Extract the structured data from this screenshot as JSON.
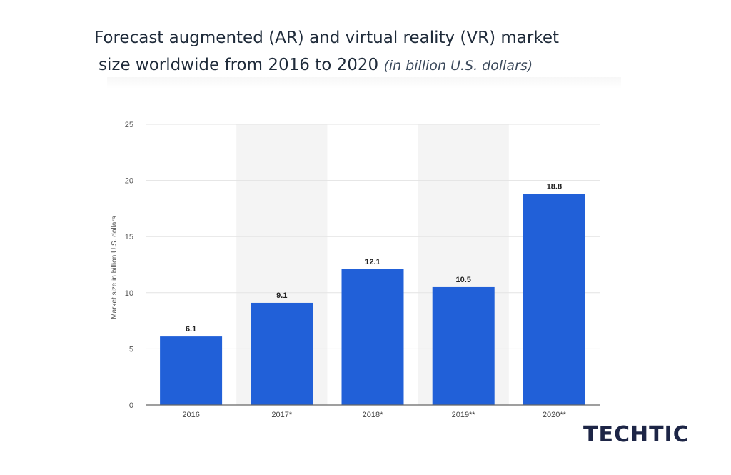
{
  "title": {
    "line1": "Forecast augmented (AR) and virtual reality (VR) market",
    "line2": "size worldwide from 2016 to 2020",
    "unit": "(in billion U.S. dollars)"
  },
  "brand": "TECHTIC",
  "chart_data": {
    "type": "bar",
    "categories": [
      "2016",
      "2017*",
      "2018*",
      "2019**",
      "2020**"
    ],
    "values": [
      6.1,
      9.1,
      12.1,
      10.5,
      18.8
    ],
    "value_labels": [
      "6.1",
      "9.1",
      "12.1",
      "10.5",
      "18.8"
    ],
    "ylabel": "Market size in billion U.S. dollars",
    "xlabel": "",
    "ylim": [
      0,
      25
    ],
    "yticks": [
      0,
      5,
      10,
      15,
      20,
      25
    ],
    "grid": true,
    "bar_color": "#2160d8",
    "band_color": "#f4f4f4"
  }
}
